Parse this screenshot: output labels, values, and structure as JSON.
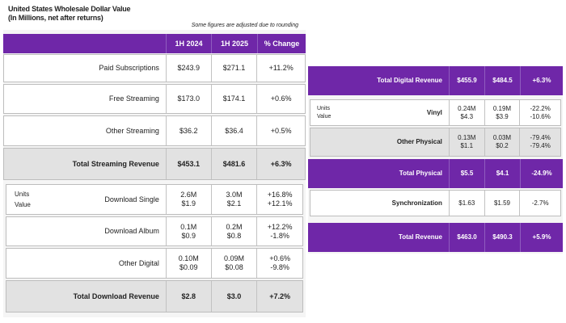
{
  "chart_data": {
    "type": "table",
    "title": "United States Wholesale Dollar Value",
    "subtitle": "(In Millions, net after returns)",
    "note": "Some figures are adjusted due to rounding",
    "columns": [
      "1H 2024",
      "1H 2025",
      "% Change"
    ],
    "left_rows": [
      {
        "label": "Paid Subscriptions",
        "sub": [],
        "y2024": [
          "$243.9"
        ],
        "y2025": [
          "$271.1"
        ],
        "chg": [
          "+11.2%"
        ]
      },
      {
        "label": "Free Streaming",
        "sub": [],
        "y2024": [
          "$173.0"
        ],
        "y2025": [
          "$174.1"
        ],
        "chg": [
          "+0.6%"
        ]
      },
      {
        "label": "Other Streaming",
        "sub": [],
        "y2024": [
          "$36.2"
        ],
        "y2025": [
          "$36.4"
        ],
        "chg": [
          "+0.5%"
        ]
      },
      {
        "label": "Total Streaming Revenue",
        "sub": [],
        "y2024": [
          "$453.1"
        ],
        "y2025": [
          "$481.6"
        ],
        "chg": [
          "+6.3%"
        ]
      },
      {
        "label": "Download Single",
        "sub": [
          "Units",
          "Value"
        ],
        "y2024": [
          "2.6M",
          "$1.9"
        ],
        "y2025": [
          "3.0M",
          "$2.1"
        ],
        "chg": [
          "+16.8%",
          "+12.1%"
        ]
      },
      {
        "label": "Download Album",
        "sub": [],
        "y2024": [
          "0.1M",
          "$0.9"
        ],
        "y2025": [
          "0.2M",
          "$0.8"
        ],
        "chg": [
          "+12.2%",
          "-1.8%"
        ]
      },
      {
        "label": "Other Digital",
        "sub": [],
        "y2024": [
          "0.10M",
          "$0.09"
        ],
        "y2025": [
          "0.09M",
          "$0.08"
        ],
        "chg": [
          "+0.6%",
          "-9.8%"
        ]
      },
      {
        "label": "Total Download Revenue",
        "sub": [],
        "y2024": [
          "$2.8"
        ],
        "y2025": [
          "$3.0"
        ],
        "chg": [
          "+7.2%"
        ]
      }
    ],
    "right_rows": [
      {
        "label": "Total Digital Revenue",
        "sub": [],
        "y2024": [
          "$455.9"
        ],
        "y2025": [
          "$484.5"
        ],
        "chg": [
          "+6.3%"
        ]
      },
      {
        "label": "Vinyl",
        "sub": [
          "Units",
          "Value"
        ],
        "y2024": [
          "0.24M",
          "$4.3"
        ],
        "y2025": [
          "0.19M",
          "$3.9"
        ],
        "chg": [
          "-22.2%",
          "-10.6%"
        ]
      },
      {
        "label": "Other Physical",
        "sub": [],
        "y2024": [
          "0.13M",
          "$1.1"
        ],
        "y2025": [
          "0.03M",
          "$0.2"
        ],
        "chg": [
          "-79.4%",
          "-79.4%"
        ]
      },
      {
        "label": "Total Physical",
        "sub": [],
        "y2024": [
          "$5.5"
        ],
        "y2025": [
          "$4.1"
        ],
        "chg": [
          "-24.9%"
        ]
      },
      {
        "label": "Synchronization",
        "sub": [],
        "y2024": [
          "$1.63"
        ],
        "y2025": [
          "$1.59"
        ],
        "chg": [
          "-2.7%"
        ]
      },
      {
        "label": "Total Revenue",
        "sub": [],
        "y2024": [
          "$463.0"
        ],
        "y2025": [
          "$490.3"
        ],
        "chg": [
          "+5.9%"
        ]
      }
    ]
  },
  "colors": {
    "accent": "#6f27a8",
    "row_grey": "#e2e2e2",
    "row_white": "#ffffff"
  }
}
